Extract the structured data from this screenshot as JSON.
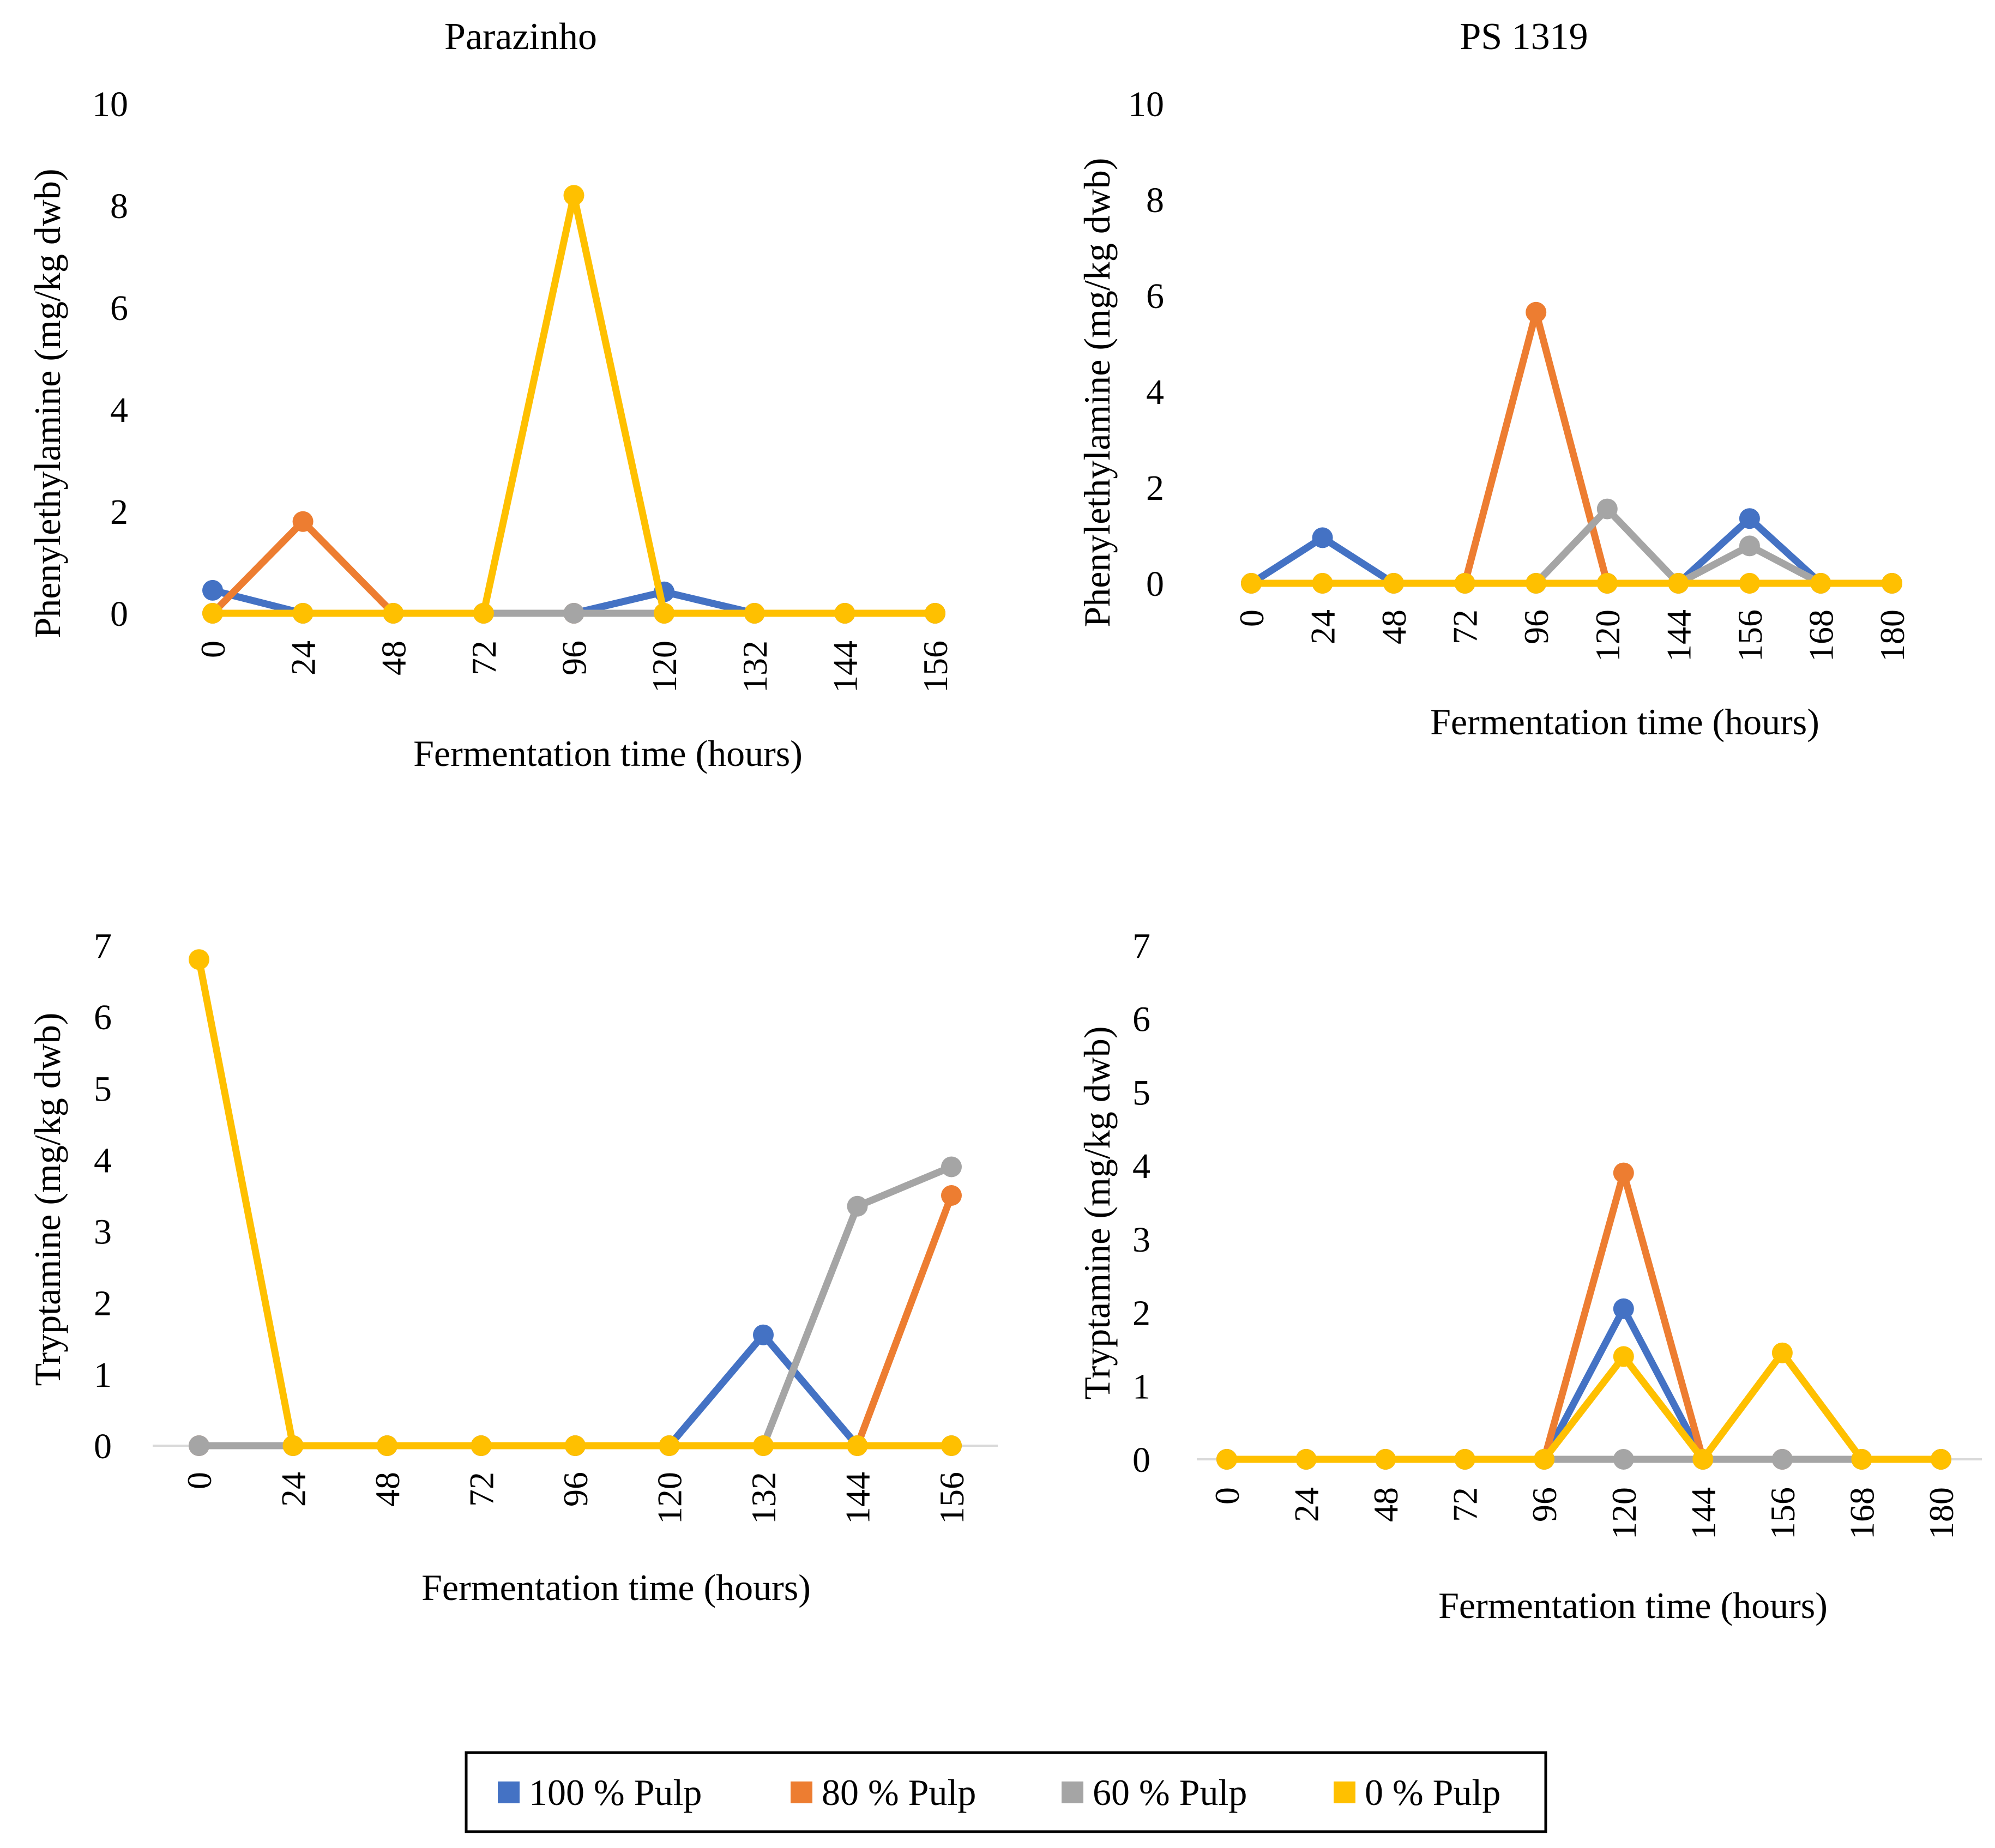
{
  "figure": {
    "legend": [
      {
        "label": "100 % Pulp",
        "color": "#4472C4"
      },
      {
        "label": "80 % Pulp",
        "color": "#ED7D31"
      },
      {
        "label": "60 % Pulp",
        "color": "#A5A5A5"
      },
      {
        "label": "0 % Pulp",
        "color": "#FFC000"
      }
    ]
  },
  "chart_data": [
    {
      "type": "line",
      "title": "Parazinho",
      "xlabel": "Fermentation time (hours)",
      "ylabel": "Phenylethylamine (mg/kg dwb)",
      "ylim": [
        0,
        10
      ],
      "yticks": [
        "0",
        "2",
        "4",
        "6",
        "8",
        "10"
      ],
      "categories": [
        "0",
        "24",
        "48",
        "72",
        "96",
        "120",
        "132",
        "144",
        "156"
      ],
      "series": [
        {
          "name": "100 % Pulp",
          "color": "#4472C4",
          "values": [
            0.45,
            0,
            0,
            0,
            0,
            0.42,
            0,
            0,
            0
          ]
        },
        {
          "name": "80 % Pulp",
          "color": "#ED7D31",
          "values": [
            0,
            1.8,
            0,
            0,
            0,
            0,
            0,
            0,
            0
          ]
        },
        {
          "name": "60 % Pulp",
          "color": "#A5A5A5",
          "values": [
            0,
            0,
            0,
            0,
            0,
            0,
            0,
            0,
            0
          ]
        },
        {
          "name": "0 % Pulp",
          "color": "#FFC000",
          "values": [
            0,
            0,
            0,
            0,
            8.2,
            0,
            0,
            0,
            0
          ]
        }
      ]
    },
    {
      "type": "line",
      "title": "PS 1319",
      "xlabel": "Fermentation time (hours)",
      "ylabel": "Phenylethylamine (mg/kg dwb)",
      "ylim": [
        0,
        10
      ],
      "yticks": [
        "0",
        "2",
        "4",
        "6",
        "8",
        "10"
      ],
      "categories": [
        "0",
        "24",
        "48",
        "72",
        "96",
        "120",
        "144",
        "156",
        "168",
        "180"
      ],
      "series": [
        {
          "name": "100 % Pulp",
          "color": "#4472C4",
          "values": [
            0,
            0.95,
            0,
            0,
            0,
            0,
            0,
            1.35,
            0,
            0
          ]
        },
        {
          "name": "80 % Pulp",
          "color": "#ED7D31",
          "values": [
            0,
            0,
            0,
            0,
            5.65,
            0,
            0,
            0,
            0,
            0
          ]
        },
        {
          "name": "60 % Pulp",
          "color": "#A5A5A5",
          "values": [
            0,
            0,
            0,
            0,
            0,
            1.55,
            0,
            0.78,
            0,
            0
          ]
        },
        {
          "name": "0 % Pulp",
          "color": "#FFC000",
          "values": [
            0,
            0,
            0,
            0,
            0,
            0,
            0,
            0,
            0,
            0
          ]
        }
      ]
    },
    {
      "type": "line",
      "title": "",
      "xlabel": "Fermentation time (hours)",
      "ylabel": "Tryptamine (mg/kg dwb)",
      "ylim": [
        0,
        7
      ],
      "yticks": [
        "0",
        "1",
        "2",
        "3",
        "4",
        "5",
        "6",
        "7"
      ],
      "categories": [
        "0",
        "24",
        "48",
        "72",
        "96",
        "120",
        "132",
        "144",
        "156"
      ],
      "series": [
        {
          "name": "100 % Pulp",
          "color": "#4472C4",
          "values": [
            0,
            0,
            0,
            0,
            0,
            0,
            1.55,
            0,
            0
          ]
        },
        {
          "name": "80 % Pulp",
          "color": "#ED7D31",
          "values": [
            0,
            0,
            0,
            0,
            0,
            0,
            0,
            0,
            3.5
          ]
        },
        {
          "name": "60 % Pulp",
          "color": "#A5A5A5",
          "values": [
            0,
            0,
            0,
            0,
            0,
            0,
            0,
            3.35,
            3.9
          ]
        },
        {
          "name": "0 % Pulp",
          "color": "#FFC000",
          "values": [
            6.8,
            0,
            0,
            0,
            0,
            0,
            0,
            0,
            0
          ]
        }
      ]
    },
    {
      "type": "line",
      "title": "",
      "xlabel": "Fermentation time (hours)",
      "ylabel": "Tryptamine (mg/kg dwb)",
      "ylim": [
        0,
        7
      ],
      "yticks": [
        "0",
        "1",
        "2",
        "3",
        "4",
        "5",
        "6",
        "7"
      ],
      "categories": [
        "0",
        "24",
        "48",
        "72",
        "96",
        "120",
        "144",
        "156",
        "168",
        "180"
      ],
      "series": [
        {
          "name": "100 % Pulp",
          "color": "#4472C4",
          "values": [
            0,
            0,
            0,
            0,
            0,
            2.05,
            0,
            0,
            0,
            0
          ]
        },
        {
          "name": "80 % Pulp",
          "color": "#ED7D31",
          "values": [
            0,
            0,
            0,
            0,
            0,
            3.9,
            0,
            0,
            0,
            0
          ]
        },
        {
          "name": "60 % Pulp",
          "color": "#A5A5A5",
          "values": [
            0,
            0,
            0,
            0,
            0,
            0,
            0,
            0,
            0,
            0
          ]
        },
        {
          "name": "0 % Pulp",
          "color": "#FFC000",
          "values": [
            0,
            0,
            0,
            0,
            0,
            1.4,
            0,
            1.45,
            0,
            0
          ]
        }
      ]
    }
  ]
}
